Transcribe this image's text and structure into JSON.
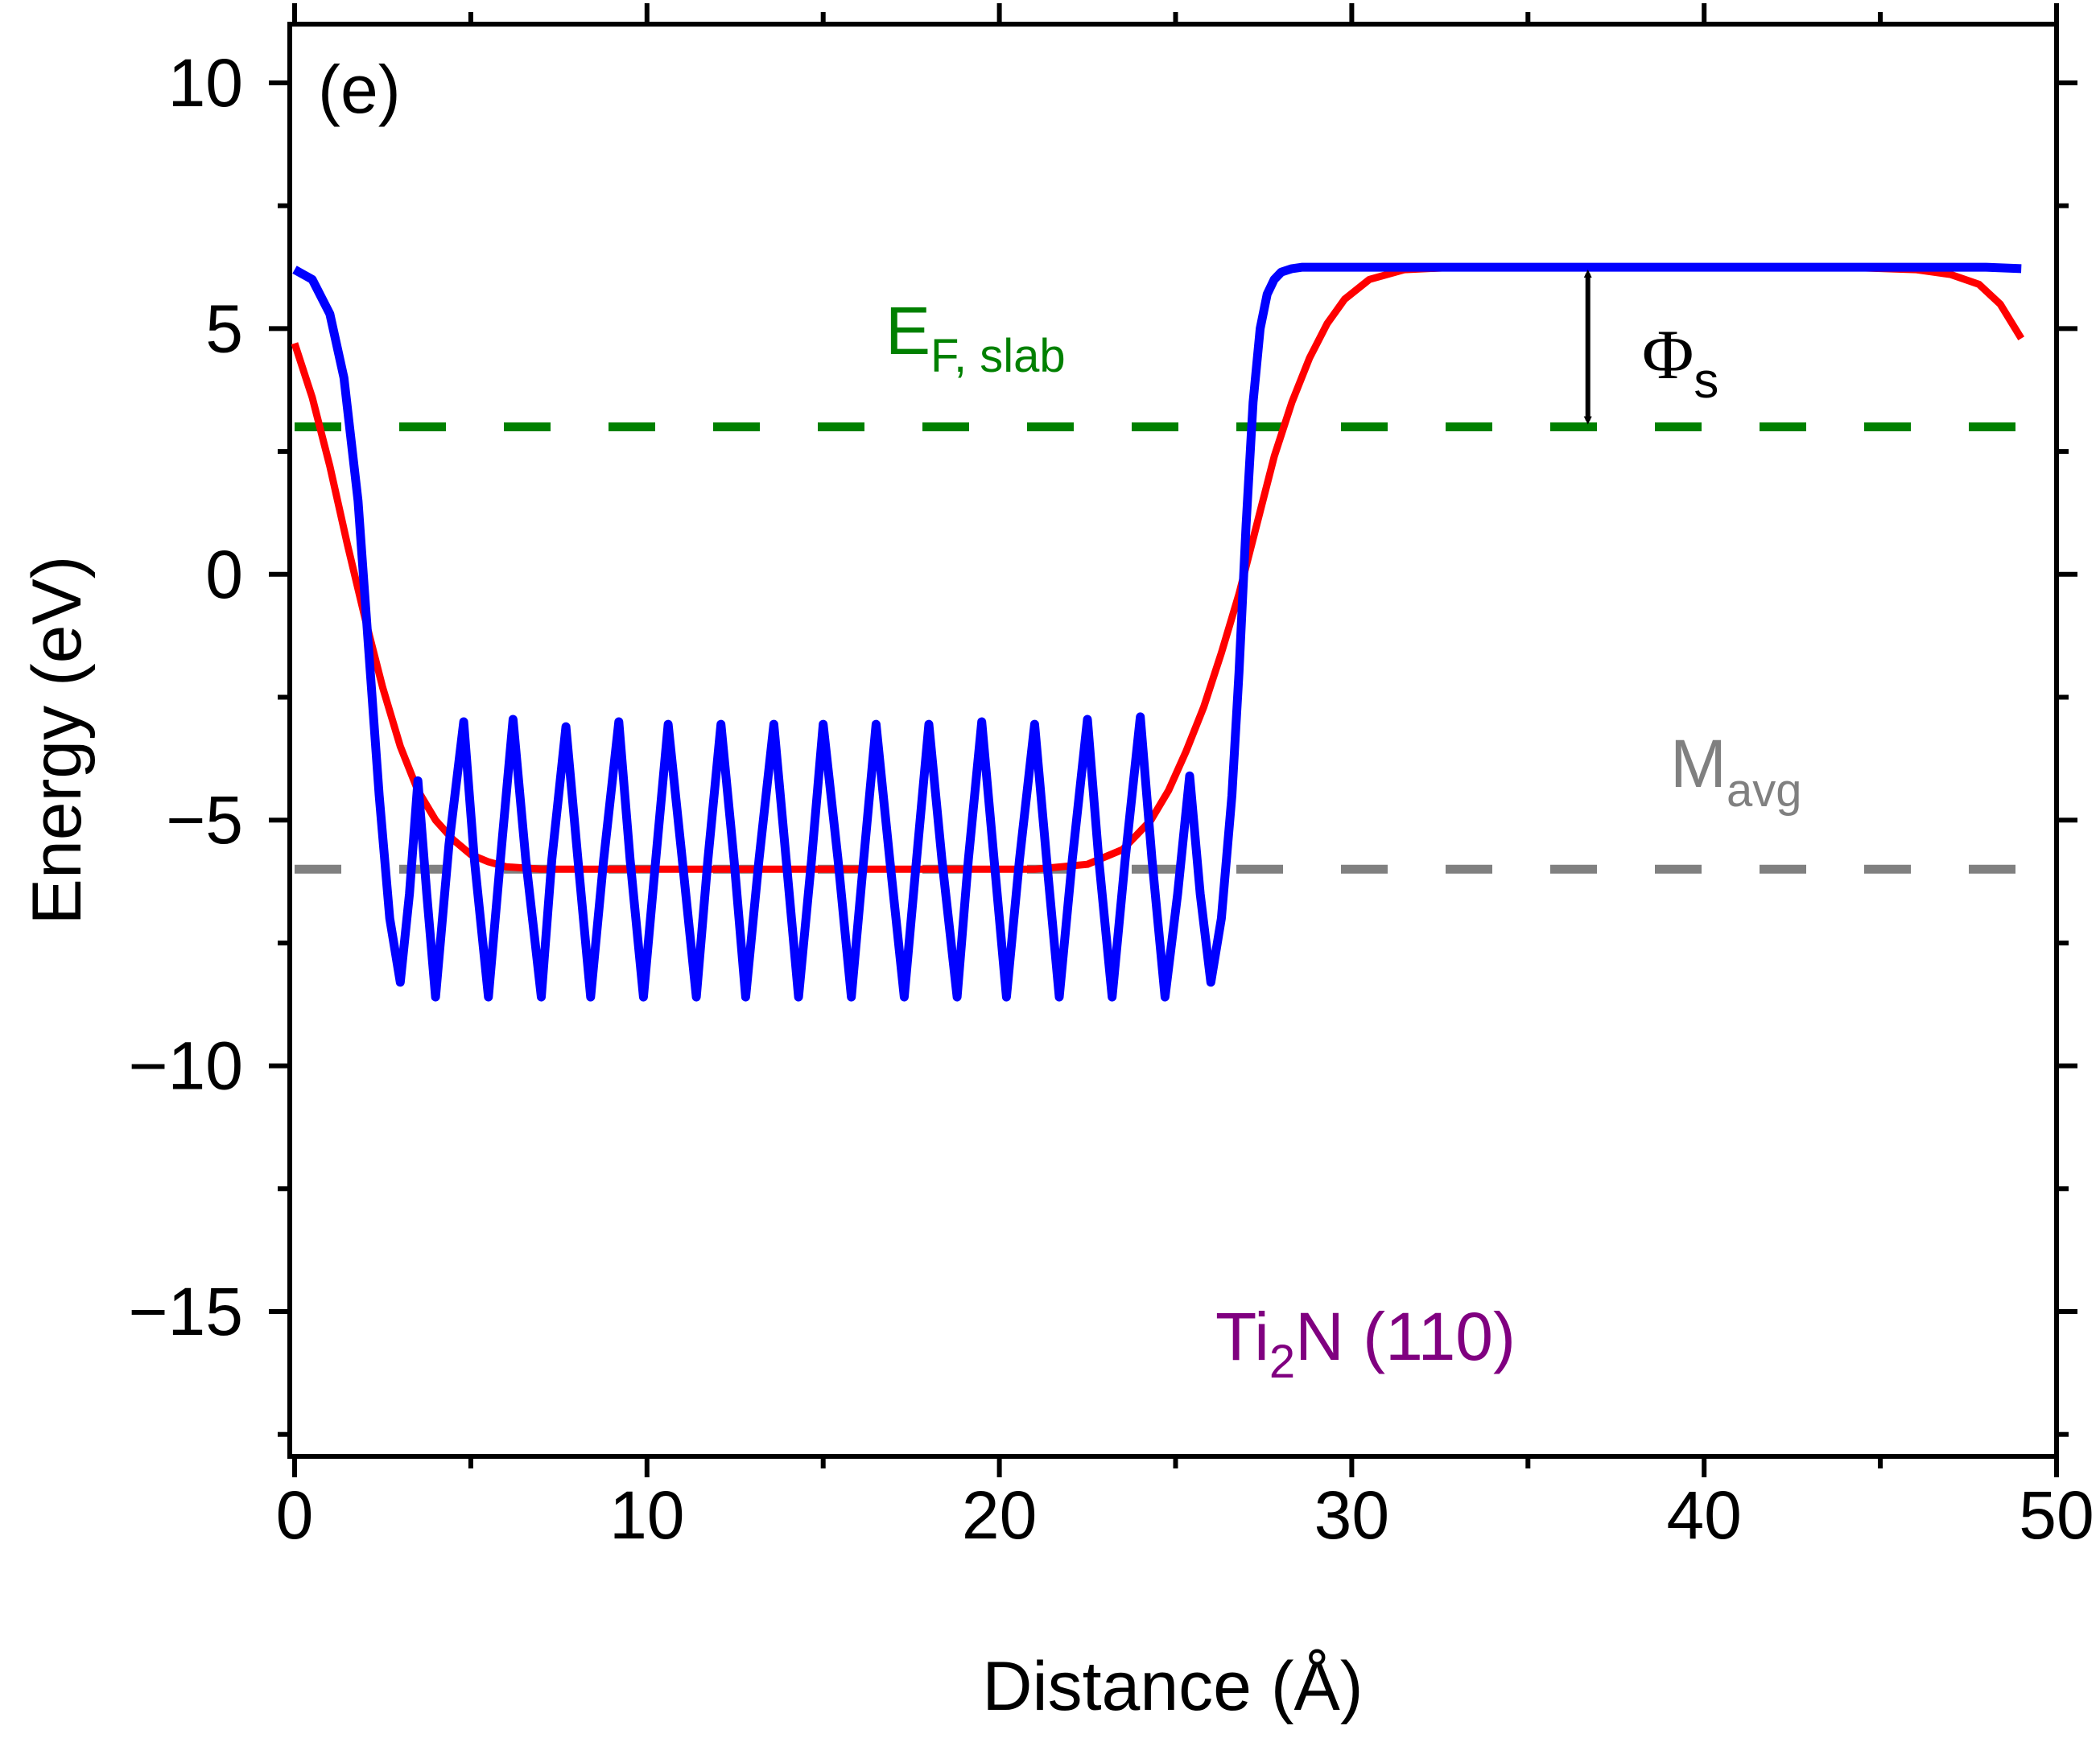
{
  "chart_data": {
    "type": "line",
    "panel_label": "(e)",
    "title": "",
    "xlabel": "Distance (Å)",
    "ylabel": "Energy (eV)",
    "xlim": [
      0,
      50
    ],
    "ylim": [
      -18,
      11
    ],
    "xticks": [
      0,
      10,
      20,
      30,
      40,
      50
    ],
    "yticks": [
      10,
      5,
      0,
      -5,
      -10,
      -15
    ],
    "ytick_labels": [
      "10",
      "5",
      "0",
      "−5",
      "−10",
      "−15"
    ],
    "grid": false,
    "colors": {
      "planar": "#0000ff",
      "macroscopic": "#ff0000",
      "fermi": "#008000",
      "average": "#808080",
      "material": "#800080"
    },
    "series": [
      {
        "key": "planar",
        "x": [
          0,
          0.5,
          1.0,
          1.4,
          1.8,
          2.1,
          2.4,
          2.7,
          3.0,
          3.26,
          3.5,
          3.75,
          4.0,
          4.38,
          4.8,
          5.1,
          5.5,
          5.84,
          6.2,
          6.56,
          7.0,
          7.3,
          7.7,
          8.04,
          8.4,
          8.77,
          9.2,
          9.52,
          9.9,
          10.25,
          10.6,
          11.0,
          11.4,
          11.73,
          12.1,
          12.47,
          12.8,
          13.18,
          13.6,
          13.95,
          14.3,
          14.67,
          15.0,
          15.42,
          15.8,
          16.15,
          16.5,
          16.89,
          17.3,
          17.65,
          18.0,
          18.37,
          18.8,
          19.12,
          19.5,
          19.85,
          20.2,
          20.57,
          21.0,
          21.34,
          21.7,
          22.07,
          22.5,
          22.82,
          23.2,
          23.57,
          24.0,
          24.33,
          24.7,
          25.06,
          25.4,
          25.7,
          26.0,
          26.3,
          26.6,
          26.8,
          27.0,
          27.2,
          27.4,
          27.6,
          27.8,
          28.0,
          28.3,
          28.6,
          29.0,
          30.0,
          32.0,
          36.0,
          40.0,
          45.0,
          48.0,
          49.0
        ],
        "y": [
          6.2,
          6.0,
          5.3,
          4.0,
          1.5,
          -1.5,
          -4.5,
          -7.0,
          -8.3,
          -6.5,
          -4.2,
          -6.5,
          -8.6,
          -5.5,
          -3.0,
          -5.8,
          -8.6,
          -5.8,
          -2.95,
          -5.8,
          -8.6,
          -5.8,
          -3.1,
          -5.8,
          -8.6,
          -5.8,
          -3.0,
          -5.8,
          -8.6,
          -5.8,
          -3.05,
          -5.8,
          -8.6,
          -5.8,
          -3.05,
          -5.8,
          -8.6,
          -5.8,
          -3.05,
          -5.8,
          -8.6,
          -5.8,
          -3.05,
          -5.8,
          -8.6,
          -5.8,
          -3.05,
          -5.8,
          -8.6,
          -5.8,
          -3.05,
          -5.8,
          -8.6,
          -5.8,
          -3.0,
          -5.8,
          -8.6,
          -5.8,
          -3.05,
          -5.8,
          -8.6,
          -5.8,
          -2.95,
          -5.8,
          -8.6,
          -5.8,
          -2.9,
          -5.8,
          -8.6,
          -6.5,
          -4.1,
          -6.5,
          -8.3,
          -7.0,
          -4.5,
          -2.0,
          1.0,
          3.5,
          5.0,
          5.7,
          6.0,
          6.15,
          6.22,
          6.25,
          6.25,
          6.25,
          6.25,
          6.25,
          6.25,
          6.25,
          6.25,
          6.22
        ]
      },
      {
        "key": "macroscopic",
        "x": [
          0,
          0.5,
          1.0,
          1.5,
          2.0,
          2.5,
          3.0,
          3.5,
          4.0,
          4.5,
          5.0,
          5.5,
          6.0,
          7.0,
          8.0,
          10.0,
          14.0,
          18.0,
          21.0,
          22.5,
          23.5,
          24.3,
          24.8,
          25.3,
          25.8,
          26.3,
          26.8,
          27.3,
          27.8,
          28.3,
          28.8,
          29.3,
          29.8,
          30.5,
          31.5,
          33.0,
          36.0,
          40.0,
          44.0,
          46.0,
          47.0,
          47.8,
          48.4,
          49.0
        ],
        "y": [
          4.7,
          3.6,
          2.2,
          0.6,
          -0.9,
          -2.3,
          -3.5,
          -4.4,
          -5.0,
          -5.4,
          -5.7,
          -5.85,
          -5.95,
          -6.0,
          -6.0,
          -6.0,
          -6.0,
          -6.0,
          -6.0,
          -5.9,
          -5.6,
          -5.0,
          -4.4,
          -3.6,
          -2.7,
          -1.6,
          -0.4,
          1.0,
          2.4,
          3.5,
          4.4,
          5.1,
          5.6,
          6.0,
          6.2,
          6.25,
          6.25,
          6.25,
          6.25,
          6.2,
          6.1,
          5.9,
          5.5,
          4.8
        ]
      }
    ],
    "reference_lines": [
      {
        "key": "fermi",
        "label_main": "E",
        "label_sub": "F, slab",
        "y": 3.0,
        "x_range": [
          0,
          49
        ]
      },
      {
        "key": "average",
        "label_main": "M",
        "label_sub": "avg",
        "y": -6.0,
        "x_range": [
          0,
          49
        ]
      }
    ],
    "work_function": {
      "label_main": "Φ",
      "label_sub": "s",
      "x": 36.7,
      "y_from": 3.0,
      "y_to": 6.25
    },
    "material_label": {
      "prefix": "Ti",
      "sub": "2",
      "suffix": "N (110)"
    }
  }
}
